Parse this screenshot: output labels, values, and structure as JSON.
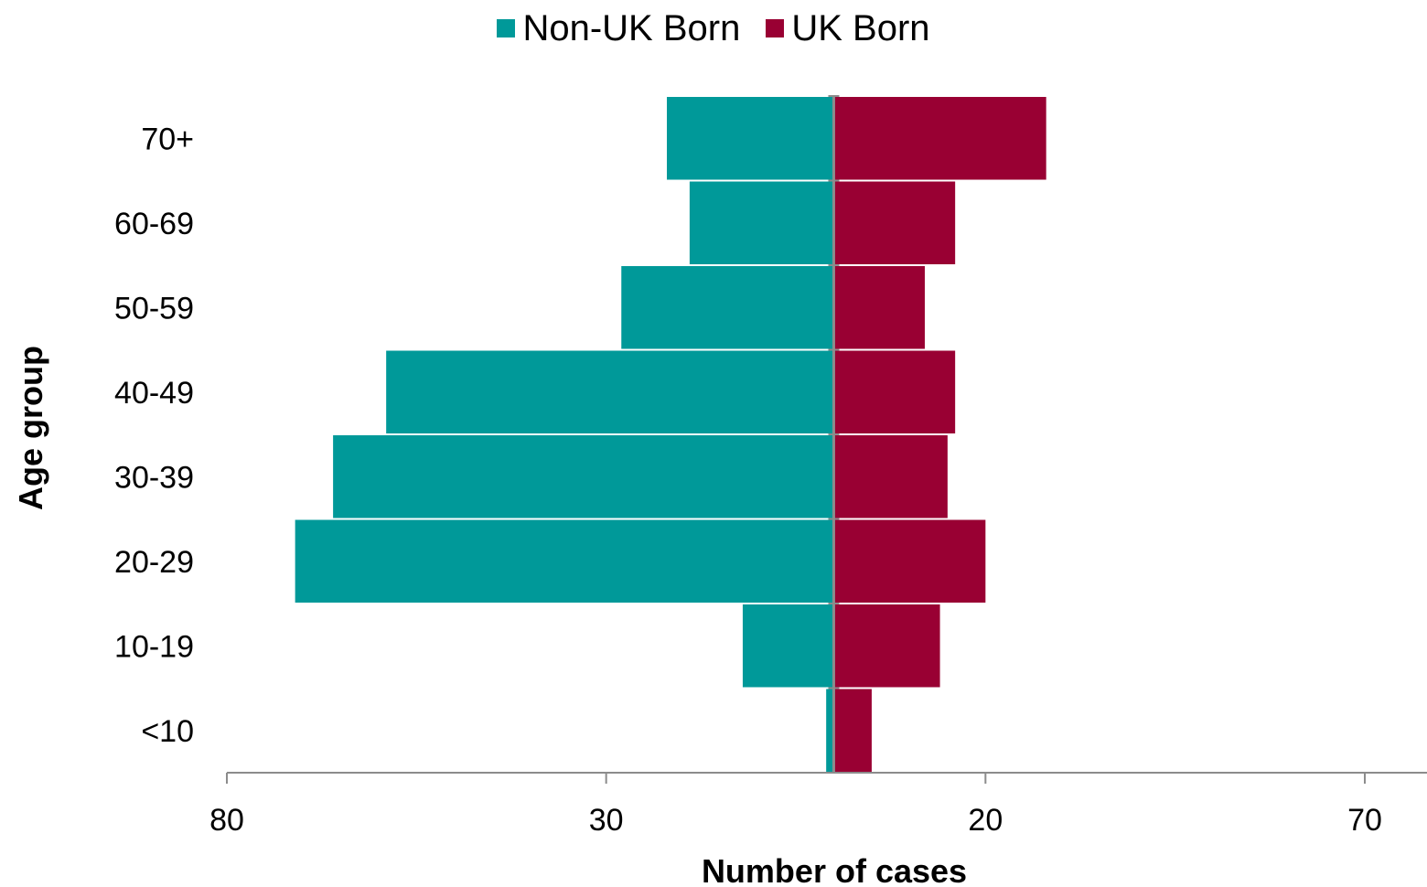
{
  "chart_data": {
    "type": "bar",
    "orientation": "horizontal",
    "style": "population-pyramid",
    "title": "",
    "xlabel": "Number of cases",
    "ylabel": "Age group",
    "categories": [
      "<10",
      "10-19",
      "20-29",
      "30-39",
      "40-49",
      "50-59",
      "60-69",
      "70+"
    ],
    "series": [
      {
        "name": "Non-UK Born",
        "side": "left",
        "color": "#009999",
        "values": [
          1,
          12,
          71,
          66,
          59,
          28,
          19,
          22
        ]
      },
      {
        "name": "UK Born",
        "side": "right",
        "color": "#990033",
        "values": [
          5,
          14,
          20,
          15,
          16,
          12,
          16,
          28
        ]
      }
    ],
    "xlim": [
      -80,
      70
    ],
    "xticks": [
      -80,
      -30,
      20,
      70
    ],
    "xtick_labels": [
      "80",
      "30",
      "20",
      "70"
    ],
    "grid": false,
    "legend_position": "top-center"
  }
}
